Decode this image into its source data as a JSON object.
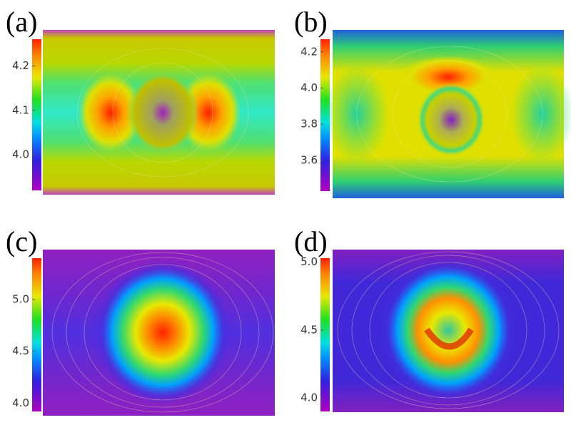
{
  "chart_data": [
    {
      "type": "contour",
      "panel_label": "(a)",
      "zlim": [
        3.92,
        4.26
      ],
      "zticks": [
        4.2,
        4.1,
        {
          "value": 4,
          "label": "4.0"
        }
      ]
    },
    {
      "type": "contour",
      "panel_label": "(b)",
      "zlim": [
        3.43,
        4.27
      ],
      "zticks": [
        4.2,
        {
          "value": 4,
          "label": "4.0"
        },
        3.8,
        3.6
      ]
    },
    {
      "type": "contour",
      "panel_label": "(c)",
      "zlim": [
        3.92,
        5.4
      ],
      "zticks": [
        {
          "value": 5,
          "label": "5.0"
        },
        4.5,
        {
          "value": 4,
          "label": "4.0"
        }
      ]
    },
    {
      "type": "contour",
      "panel_label": "(d)",
      "zlim": [
        3.9,
        5.03
      ],
      "zticks": [
        {
          "value": 5,
          "label": "5.0"
        },
        4.5,
        {
          "value": 4,
          "label": "4.0"
        }
      ]
    }
  ]
}
